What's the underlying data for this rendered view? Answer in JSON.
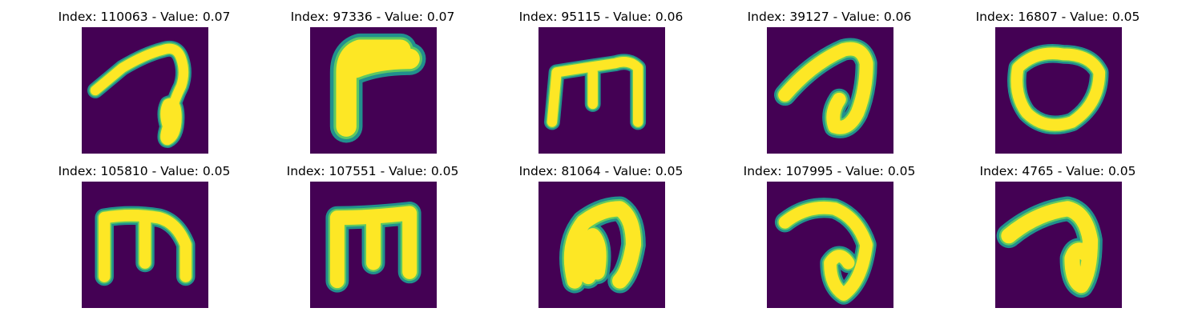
{
  "panels": [
    {
      "title": "Index: 110063 - Value: 0.07",
      "glyph": "a-curl"
    },
    {
      "title": "Index: 97336 - Value: 0.07",
      "glyph": "thick-r"
    },
    {
      "title": "Index: 95115 - Value: 0.06",
      "glyph": "m-stroke"
    },
    {
      "title": "Index: 39127 - Value: 0.06",
      "glyph": "a-curl-thick"
    },
    {
      "title": "Index: 16807 - Value: 0.05",
      "glyph": "o-loop"
    },
    {
      "title": "Index: 105810 - Value: 0.05",
      "glyph": "m-stroke-b"
    },
    {
      "title": "Index: 107551 - Value: 0.05",
      "glyph": "m-thick"
    },
    {
      "title": "Index: 81064 - Value: 0.05",
      "glyph": "a-loop-fat"
    },
    {
      "title": "Index: 107995 - Value: 0.05",
      "glyph": "a-curl-2"
    },
    {
      "title": "Index: 4765 - Value: 0.05",
      "glyph": "a-fat"
    }
  ],
  "colors": {
    "background": "#440154",
    "stroke_outer": "#21908d",
    "stroke_mid": "#5ec962",
    "stroke_core": "#fde725"
  }
}
